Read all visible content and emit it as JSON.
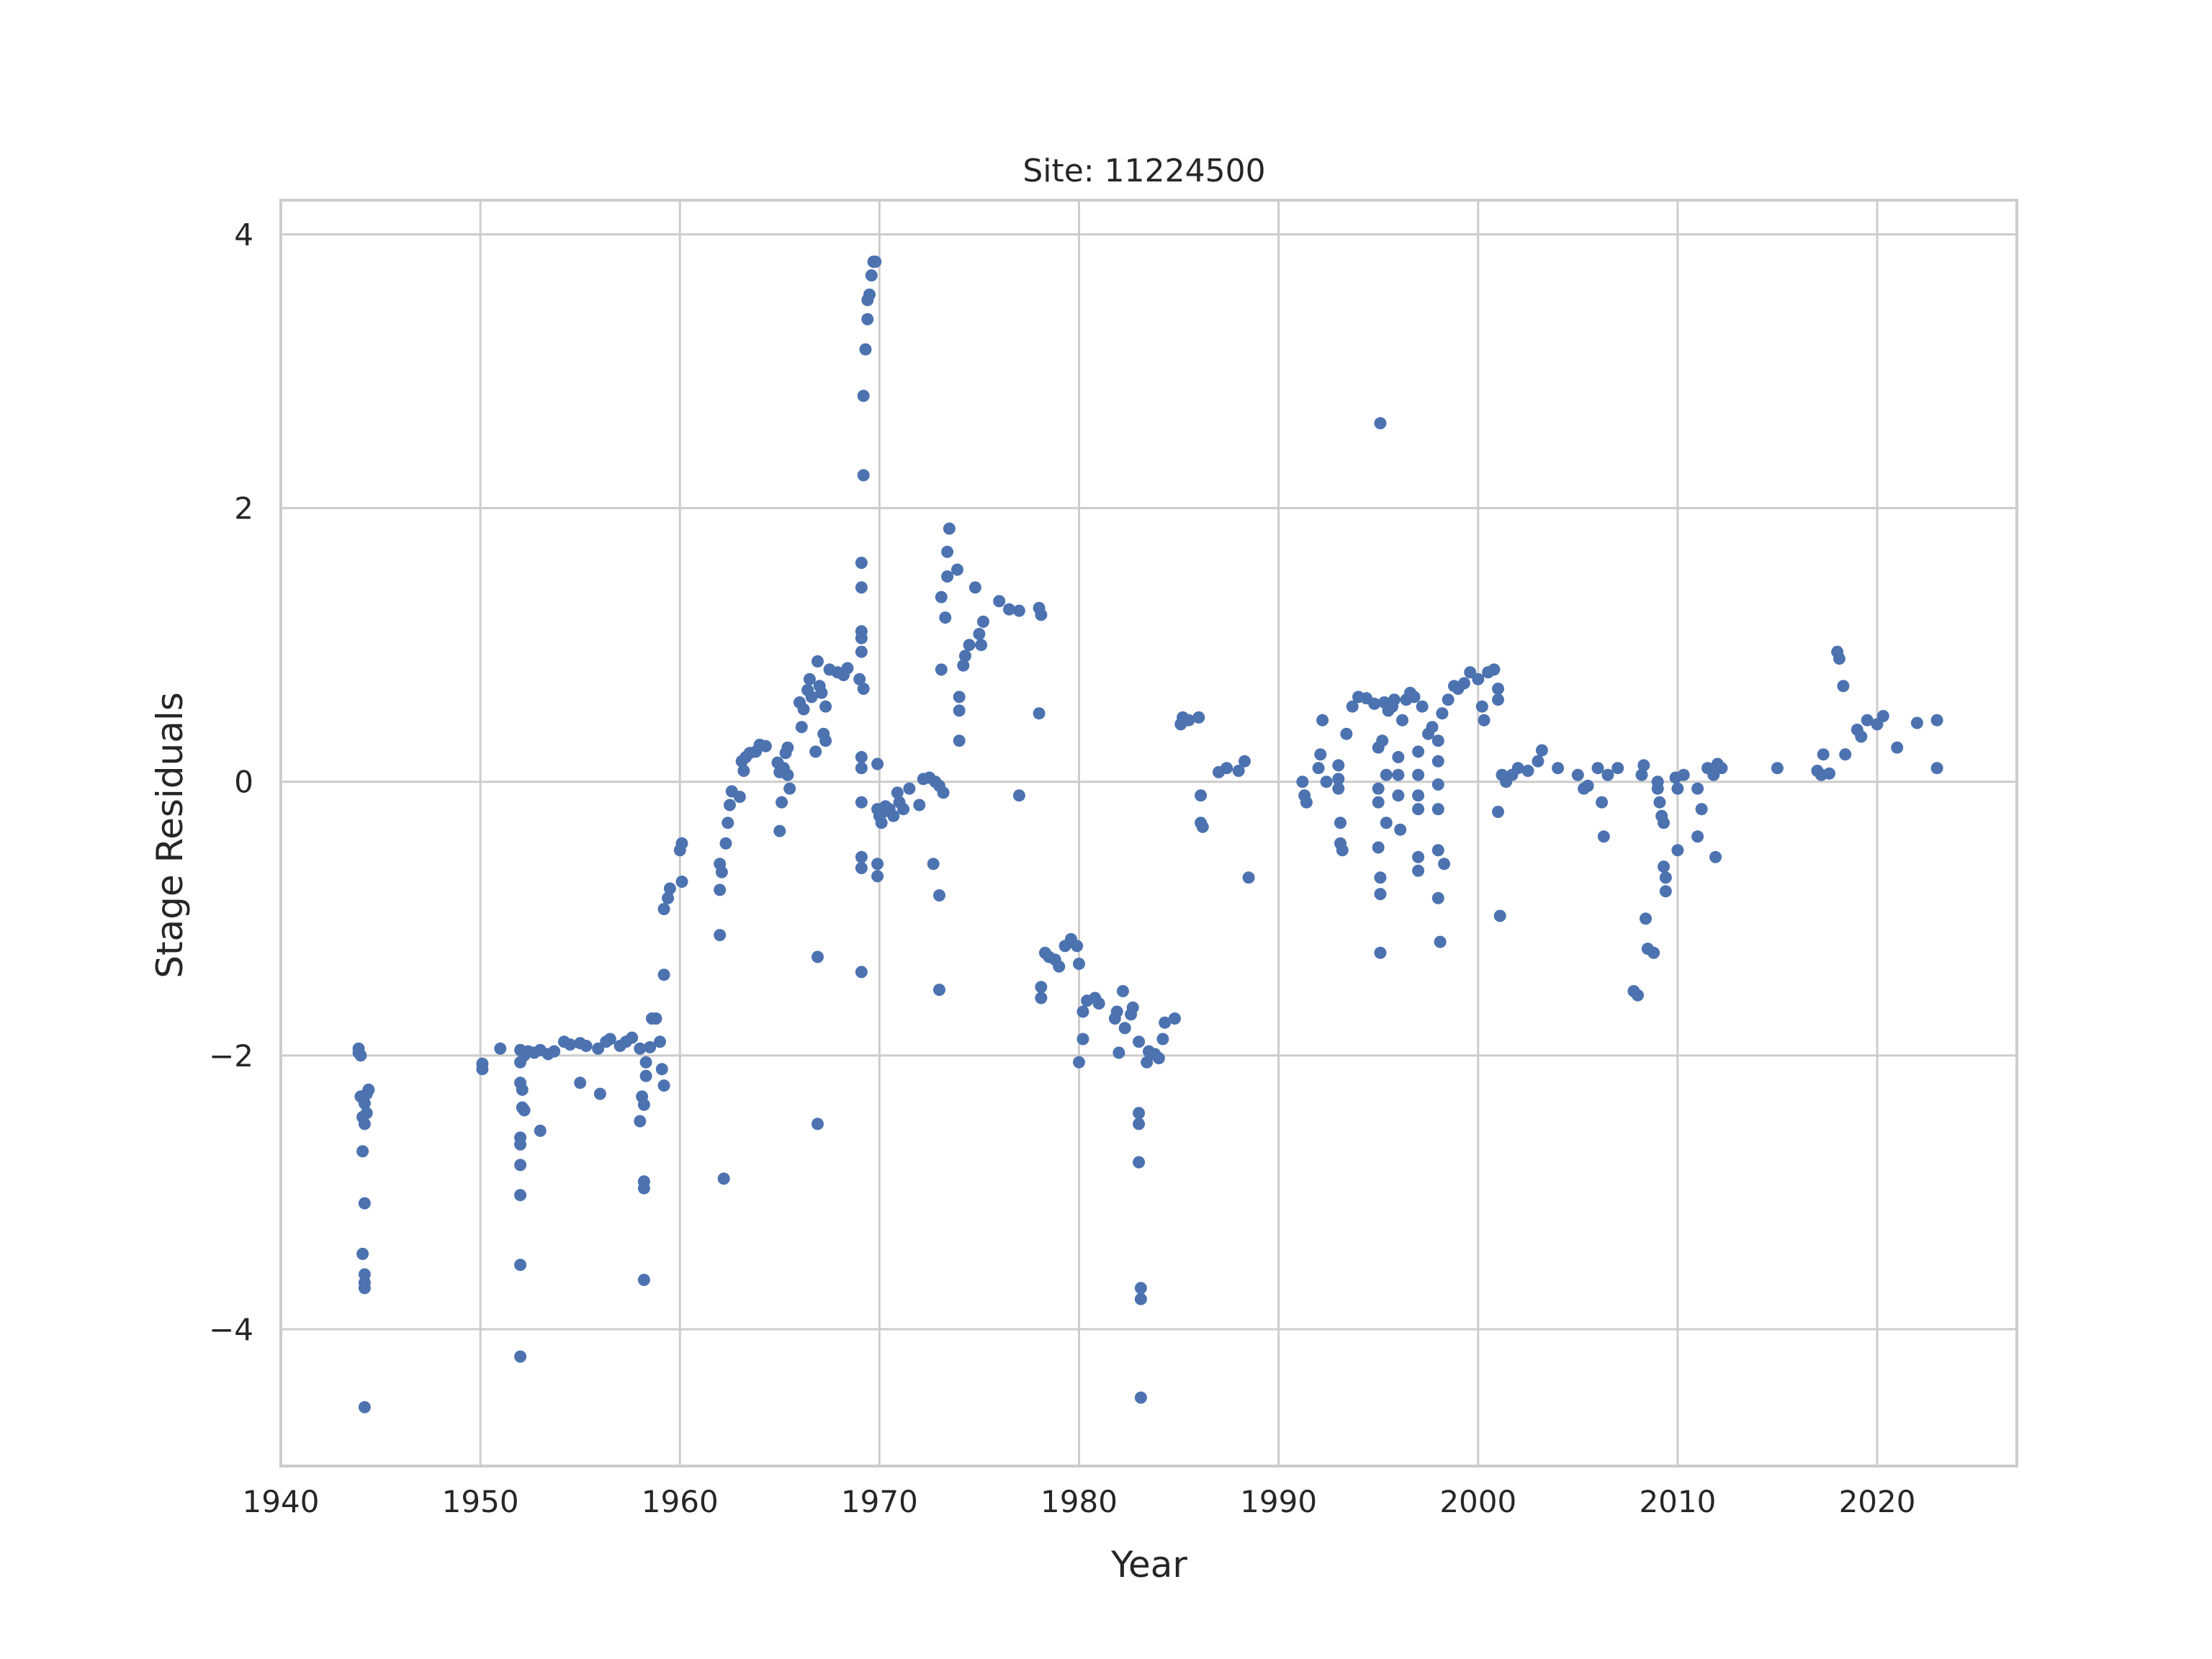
{
  "chart_data": {
    "type": "scatter",
    "title": "Site: 11224500",
    "xlabel": "Year",
    "ylabel": "Stage Residuals",
    "xlim": [
      1940,
      2027
    ],
    "ylim": [
      -5,
      4.25
    ],
    "xticks": [
      1940,
      1950,
      1960,
      1970,
      1980,
      1990,
      2000,
      2010,
      2020
    ],
    "yticks": [
      4,
      2,
      0,
      -2,
      -4
    ],
    "ytick_labels": [
      "4",
      "2",
      "0",
      "−2",
      "−4"
    ],
    "grid": true,
    "marker_color": "#4c72b0",
    "points": [
      [
        1943.9,
        -1.95
      ],
      [
        1943.9,
        -1.98
      ],
      [
        1944.0,
        -2.0
      ],
      [
        1944.0,
        -2.3
      ],
      [
        1944.1,
        -2.45
      ],
      [
        1944.1,
        -2.7
      ],
      [
        1944.2,
        -2.5
      ],
      [
        1944.2,
        -2.35
      ],
      [
        1944.3,
        -2.28
      ],
      [
        1944.3,
        -2.42
      ],
      [
        1944.2,
        -3.08
      ],
      [
        1944.1,
        -3.45
      ],
      [
        1944.2,
        -3.6
      ],
      [
        1944.2,
        -3.66
      ],
      [
        1944.2,
        -3.7
      ],
      [
        1944.2,
        -4.57
      ],
      [
        1944.4,
        -2.25
      ],
      [
        1950.1,
        -2.06
      ],
      [
        1950.1,
        -2.1
      ],
      [
        1951.0,
        -1.95
      ],
      [
        1952.0,
        -1.96
      ],
      [
        1952.0,
        -2.05
      ],
      [
        1952.0,
        -2.2
      ],
      [
        1952.1,
        -2.25
      ],
      [
        1952.1,
        -2.38
      ],
      [
        1952.0,
        -2.6
      ],
      [
        1952.0,
        -2.65
      ],
      [
        1952.0,
        -2.8
      ],
      [
        1952.0,
        -3.02
      ],
      [
        1952.0,
        -3.53
      ],
      [
        1952.0,
        -4.2
      ],
      [
        1952.2,
        -2.0
      ],
      [
        1952.2,
        -2.4
      ],
      [
        1952.4,
        -1.97
      ],
      [
        1952.7,
        -1.98
      ],
      [
        1953.0,
        -1.96
      ],
      [
        1953.0,
        -2.55
      ],
      [
        1953.4,
        -1.99
      ],
      [
        1953.7,
        -1.97
      ],
      [
        1954.2,
        -1.9
      ],
      [
        1954.5,
        -1.92
      ],
      [
        1955.0,
        -1.91
      ],
      [
        1955.0,
        -2.2
      ],
      [
        1955.3,
        -1.93
      ],
      [
        1955.9,
        -1.95
      ],
      [
        1956.0,
        -2.28
      ],
      [
        1956.3,
        -1.9
      ],
      [
        1956.5,
        -1.88
      ],
      [
        1957.0,
        -1.93
      ],
      [
        1957.3,
        -1.9
      ],
      [
        1957.6,
        -1.87
      ],
      [
        1958.0,
        -1.95
      ],
      [
        1958.0,
        -2.48
      ],
      [
        1958.1,
        -2.3
      ],
      [
        1958.2,
        -2.36
      ],
      [
        1958.2,
        -2.92
      ],
      [
        1958.2,
        -2.97
      ],
      [
        1958.2,
        -3.64
      ],
      [
        1958.3,
        -2.05
      ],
      [
        1958.3,
        -2.15
      ],
      [
        1958.5,
        -1.94
      ],
      [
        1958.6,
        -1.73
      ],
      [
        1958.8,
        -1.73
      ],
      [
        1959.0,
        -1.9
      ],
      [
        1959.1,
        -2.1
      ],
      [
        1959.2,
        -2.22
      ],
      [
        1959.2,
        -1.41
      ],
      [
        1959.2,
        -0.93
      ],
      [
        1959.4,
        -0.85
      ],
      [
        1959.5,
        -0.78
      ],
      [
        1960.0,
        -0.5
      ],
      [
        1960.1,
        -0.45
      ],
      [
        1960.1,
        -0.73
      ],
      [
        1962.0,
        -0.6
      ],
      [
        1962.0,
        -0.79
      ],
      [
        1962.0,
        -1.12
      ],
      [
        1962.1,
        -0.66
      ],
      [
        1962.2,
        -2.9
      ],
      [
        1962.3,
        -0.45
      ],
      [
        1962.4,
        -0.3
      ],
      [
        1962.5,
        -0.17
      ],
      [
        1962.6,
        -0.07
      ],
      [
        1963.0,
        -0.11
      ],
      [
        1963.1,
        0.15
      ],
      [
        1963.2,
        0.08
      ],
      [
        1963.3,
        0.18
      ],
      [
        1963.5,
        0.21
      ],
      [
        1963.8,
        0.22
      ],
      [
        1964.0,
        0.27
      ],
      [
        1964.3,
        0.26
      ],
      [
        1964.9,
        0.14
      ],
      [
        1965.0,
        0.07
      ],
      [
        1965.1,
        -0.15
      ],
      [
        1965.2,
        0.1
      ],
      [
        1965.3,
        0.21
      ],
      [
        1965.4,
        0.25
      ],
      [
        1965.4,
        0.05
      ],
      [
        1965.5,
        -0.05
      ],
      [
        1965.0,
        -0.36
      ],
      [
        1966.0,
        0.58
      ],
      [
        1966.1,
        0.4
      ],
      [
        1966.2,
        0.53
      ],
      [
        1966.4,
        0.67
      ],
      [
        1966.5,
        0.75
      ],
      [
        1966.6,
        0.62
      ],
      [
        1966.8,
        0.22
      ],
      [
        1966.9,
        0.88
      ],
      [
        1967.0,
        0.7
      ],
      [
        1967.1,
        0.65
      ],
      [
        1967.2,
        0.35
      ],
      [
        1967.3,
        0.3
      ],
      [
        1967.3,
        0.55
      ],
      [
        1967.5,
        0.82
      ],
      [
        1967.9,
        0.8
      ],
      [
        1968.2,
        0.78
      ],
      [
        1968.4,
        0.83
      ],
      [
        1966.9,
        -1.28
      ],
      [
        1966.9,
        -2.5
      ],
      [
        1969.0,
        0.75
      ],
      [
        1969.1,
        0.95
      ],
      [
        1969.1,
        1.05
      ],
      [
        1969.1,
        1.1
      ],
      [
        1969.1,
        1.42
      ],
      [
        1969.1,
        1.6
      ],
      [
        1969.2,
        0.68
      ],
      [
        1969.1,
        0.18
      ],
      [
        1969.1,
        0.1
      ],
      [
        1969.1,
        -0.15
      ],
      [
        1969.1,
        -0.55
      ],
      [
        1969.1,
        -0.63
      ],
      [
        1969.1,
        -1.39
      ],
      [
        1969.2,
        2.24
      ],
      [
        1969.2,
        2.82
      ],
      [
        1969.3,
        3.16
      ],
      [
        1969.4,
        3.38
      ],
      [
        1969.4,
        3.52
      ],
      [
        1969.5,
        3.56
      ],
      [
        1969.6,
        3.7
      ],
      [
        1969.7,
        3.8
      ],
      [
        1969.8,
        3.8
      ],
      [
        1969.9,
        0.13
      ],
      [
        1969.9,
        -0.2
      ],
      [
        1969.9,
        -0.6
      ],
      [
        1969.9,
        -0.69
      ],
      [
        1970.0,
        -0.25
      ],
      [
        1970.1,
        -0.3
      ],
      [
        1970.2,
        -0.22
      ],
      [
        1970.3,
        -0.18
      ],
      [
        1970.5,
        -0.2
      ],
      [
        1970.7,
        -0.25
      ],
      [
        1970.9,
        -0.08
      ],
      [
        1971.0,
        -0.15
      ],
      [
        1971.2,
        -0.2
      ],
      [
        1971.5,
        -0.05
      ],
      [
        1972.0,
        -0.17
      ],
      [
        1972.2,
        0.02
      ],
      [
        1972.5,
        0.03
      ],
      [
        1972.8,
        0.0
      ],
      [
        1973.0,
        -0.03
      ],
      [
        1973.2,
        -0.08
      ],
      [
        1972.7,
        -0.6
      ],
      [
        1973.0,
        -0.83
      ],
      [
        1973.0,
        -1.52
      ],
      [
        1973.1,
        0.82
      ],
      [
        1973.1,
        1.35
      ],
      [
        1973.3,
        1.2
      ],
      [
        1973.4,
        1.5
      ],
      [
        1973.4,
        1.68
      ],
      [
        1973.5,
        1.85
      ],
      [
        1973.9,
        1.55
      ],
      [
        1974.0,
        0.62
      ],
      [
        1974.0,
        0.52
      ],
      [
        1974.0,
        0.3
      ],
      [
        1974.2,
        0.85
      ],
      [
        1974.3,
        0.92
      ],
      [
        1974.5,
        1.0
      ],
      [
        1974.8,
        1.42
      ],
      [
        1975.0,
        1.08
      ],
      [
        1975.1,
        1.0
      ],
      [
        1975.2,
        1.17
      ],
      [
        1976.0,
        1.32
      ],
      [
        1976.5,
        1.26
      ],
      [
        1977.0,
        1.25
      ],
      [
        1977.0,
        -0.1
      ],
      [
        1978.0,
        1.27
      ],
      [
        1978.1,
        1.22
      ],
      [
        1978.0,
        0.5
      ],
      [
        1978.1,
        -1.5
      ],
      [
        1978.1,
        -1.58
      ],
      [
        1978.3,
        -1.25
      ],
      [
        1978.5,
        -1.28
      ],
      [
        1978.8,
        -1.3
      ],
      [
        1979.0,
        -1.35
      ],
      [
        1979.3,
        -1.2
      ],
      [
        1979.6,
        -1.15
      ],
      [
        1979.9,
        -1.2
      ],
      [
        1980.0,
        -1.33
      ],
      [
        1980.0,
        -2.05
      ],
      [
        1980.2,
        -1.88
      ],
      [
        1980.2,
        -1.68
      ],
      [
        1980.4,
        -1.6
      ],
      [
        1980.8,
        -1.58
      ],
      [
        1981.0,
        -1.62
      ],
      [
        1981.8,
        -1.73
      ],
      [
        1981.9,
        -1.68
      ],
      [
        1982.0,
        -1.98
      ],
      [
        1982.2,
        -1.53
      ],
      [
        1982.3,
        -1.8
      ],
      [
        1982.6,
        -1.7
      ],
      [
        1982.7,
        -1.65
      ],
      [
        1983.0,
        -1.9
      ],
      [
        1983.0,
        -2.42
      ],
      [
        1983.0,
        -2.5
      ],
      [
        1983.0,
        -2.78
      ],
      [
        1983.1,
        -3.7
      ],
      [
        1983.1,
        -3.78
      ],
      [
        1983.1,
        -4.5
      ],
      [
        1983.4,
        -2.05
      ],
      [
        1983.5,
        -1.97
      ],
      [
        1983.8,
        -1.99
      ],
      [
        1984.0,
        -2.02
      ],
      [
        1984.2,
        -1.88
      ],
      [
        1984.3,
        -1.76
      ],
      [
        1984.8,
        -1.73
      ],
      [
        1985.1,
        0.42
      ],
      [
        1985.2,
        0.47
      ],
      [
        1985.5,
        0.45
      ],
      [
        1986.0,
        0.47
      ],
      [
        1986.1,
        -0.1
      ],
      [
        1986.1,
        -0.3
      ],
      [
        1986.2,
        -0.33
      ],
      [
        1987.0,
        0.07
      ],
      [
        1987.4,
        0.1
      ],
      [
        1988.0,
        0.08
      ],
      [
        1988.3,
        0.15
      ],
      [
        1988.5,
        -0.7
      ],
      [
        1991.2,
        0.0
      ],
      [
        1991.3,
        -0.1
      ],
      [
        1991.4,
        -0.15
      ],
      [
        1992.0,
        0.1
      ],
      [
        1992.1,
        0.2
      ],
      [
        1992.2,
        0.45
      ],
      [
        1992.4,
        0.0
      ],
      [
        1993.0,
        0.12
      ],
      [
        1993.0,
        0.02
      ],
      [
        1993.0,
        -0.05
      ],
      [
        1993.1,
        -0.3
      ],
      [
        1993.1,
        -0.45
      ],
      [
        1993.2,
        -0.5
      ],
      [
        1993.4,
        0.35
      ],
      [
        1993.7,
        0.55
      ],
      [
        1994.0,
        0.62
      ],
      [
        1994.4,
        0.61
      ],
      [
        1994.8,
        0.57
      ],
      [
        1995.0,
        0.25
      ],
      [
        1995.0,
        -0.05
      ],
      [
        1995.0,
        -0.15
      ],
      [
        1995.0,
        -0.48
      ],
      [
        1995.1,
        -0.7
      ],
      [
        1995.1,
        -0.82
      ],
      [
        1995.1,
        -1.25
      ],
      [
        1995.1,
        2.62
      ],
      [
        1995.2,
        0.3
      ],
      [
        1995.3,
        0.58
      ],
      [
        1995.4,
        0.05
      ],
      [
        1995.4,
        -0.3
      ],
      [
        1995.5,
        0.52
      ],
      [
        1995.7,
        0.55
      ],
      [
        1995.8,
        0.6
      ],
      [
        1996.0,
        0.18
      ],
      [
        1996.0,
        0.05
      ],
      [
        1996.0,
        -0.1
      ],
      [
        1996.1,
        -0.35
      ],
      [
        1996.2,
        0.45
      ],
      [
        1996.4,
        0.6
      ],
      [
        1996.6,
        0.65
      ],
      [
        1996.8,
        0.62
      ],
      [
        1997.0,
        0.22
      ],
      [
        1997.0,
        0.05
      ],
      [
        1997.0,
        -0.1
      ],
      [
        1997.0,
        -0.2
      ],
      [
        1997.0,
        -0.55
      ],
      [
        1997.0,
        -0.65
      ],
      [
        1997.2,
        0.55
      ],
      [
        1997.5,
        0.35
      ],
      [
        1997.7,
        0.4
      ],
      [
        1998.0,
        0.3
      ],
      [
        1998.0,
        0.15
      ],
      [
        1998.0,
        -0.02
      ],
      [
        1998.0,
        -0.2
      ],
      [
        1998.0,
        -0.5
      ],
      [
        1998.0,
        -0.85
      ],
      [
        1998.1,
        -1.17
      ],
      [
        1998.3,
        -0.6
      ],
      [
        1998.2,
        0.5
      ],
      [
        1998.5,
        0.6
      ],
      [
        1998.8,
        0.7
      ],
      [
        1999.0,
        0.68
      ],
      [
        1999.3,
        0.72
      ],
      [
        1999.6,
        0.8
      ],
      [
        2000.0,
        0.75
      ],
      [
        2000.2,
        0.55
      ],
      [
        2000.3,
        0.45
      ],
      [
        2000.5,
        0.8
      ],
      [
        2000.8,
        0.82
      ],
      [
        2001.0,
        0.68
      ],
      [
        2001.0,
        0.6
      ],
      [
        2001.0,
        -0.22
      ],
      [
        2001.1,
        -0.98
      ],
      [
        2001.2,
        0.05
      ],
      [
        2001.4,
        0.0
      ],
      [
        2001.7,
        0.05
      ],
      [
        2002.0,
        0.1
      ],
      [
        2002.5,
        0.08
      ],
      [
        2003.0,
        0.15
      ],
      [
        2003.2,
        0.23
      ],
      [
        2004.0,
        0.1
      ],
      [
        2005.0,
        0.05
      ],
      [
        2005.3,
        -0.05
      ],
      [
        2005.5,
        -0.03
      ],
      [
        2006.0,
        0.1
      ],
      [
        2006.2,
        -0.15
      ],
      [
        2006.3,
        -0.4
      ],
      [
        2006.5,
        0.05
      ],
      [
        2007.0,
        0.1
      ],
      [
        2007.8,
        -1.53
      ],
      [
        2008.0,
        -1.56
      ],
      [
        2008.2,
        0.05
      ],
      [
        2008.3,
        0.12
      ],
      [
        2008.4,
        -1.0
      ],
      [
        2008.5,
        -1.22
      ],
      [
        2008.8,
        -1.25
      ],
      [
        2009.0,
        0.0
      ],
      [
        2009.0,
        -0.05
      ],
      [
        2009.1,
        -0.15
      ],
      [
        2009.2,
        -0.25
      ],
      [
        2009.3,
        -0.3
      ],
      [
        2009.3,
        -0.62
      ],
      [
        2009.4,
        -0.7
      ],
      [
        2009.4,
        -0.8
      ],
      [
        2009.9,
        0.03
      ],
      [
        2010.0,
        -0.05
      ],
      [
        2010.0,
        -0.5
      ],
      [
        2010.3,
        0.05
      ],
      [
        2011.0,
        -0.4
      ],
      [
        2011.0,
        -0.05
      ],
      [
        2011.2,
        -0.2
      ],
      [
        2011.5,
        0.1
      ],
      [
        2011.8,
        0.05
      ],
      [
        2011.9,
        -0.55
      ],
      [
        2012.0,
        0.13
      ],
      [
        2012.2,
        0.1
      ],
      [
        2015.0,
        0.1
      ],
      [
        2017.0,
        0.08
      ],
      [
        2017.2,
        0.05
      ],
      [
        2017.3,
        0.2
      ],
      [
        2017.6,
        0.06
      ],
      [
        2018.0,
        0.95
      ],
      [
        2018.1,
        0.9
      ],
      [
        2018.3,
        0.7
      ],
      [
        2018.4,
        0.2
      ],
      [
        2019.0,
        0.38
      ],
      [
        2019.2,
        0.33
      ],
      [
        2019.5,
        0.45
      ],
      [
        2020.0,
        0.42
      ],
      [
        2020.3,
        0.48
      ],
      [
        2021.0,
        0.25
      ],
      [
        2022.0,
        0.43
      ],
      [
        2023.0,
        0.45
      ],
      [
        2023.0,
        0.1
      ]
    ]
  }
}
